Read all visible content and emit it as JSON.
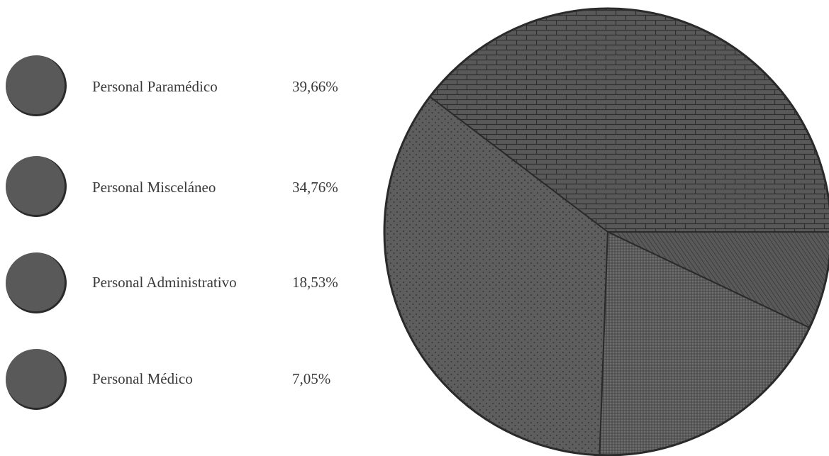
{
  "chart_data": {
    "type": "pie",
    "title": "",
    "legend_position": "left",
    "slices": [
      {
        "label": "Personal Paramédico",
        "value": 39.66,
        "value_text": "39,66%",
        "pattern": "brick",
        "color": "#595959"
      },
      {
        "label": "Personal Misceláneo",
        "value": 34.76,
        "value_text": "34,76%",
        "pattern": "stipple",
        "color": "#5c5c5c"
      },
      {
        "label": "Personal Administrativo",
        "value": 18.53,
        "value_text": "18,53%",
        "pattern": "dots",
        "color": "#5a5a5a"
      },
      {
        "label": "Personal Médico",
        "value": 7.05,
        "value_text": "7,05%",
        "pattern": "diagonal",
        "color": "#565656"
      }
    ],
    "start_angle_degrees": 0,
    "direction": "counterclockwise"
  },
  "colors": {
    "swatch": "#595959",
    "outline": "#2a2a2a",
    "text": "#3a3a3a",
    "background": "#ffffff"
  }
}
